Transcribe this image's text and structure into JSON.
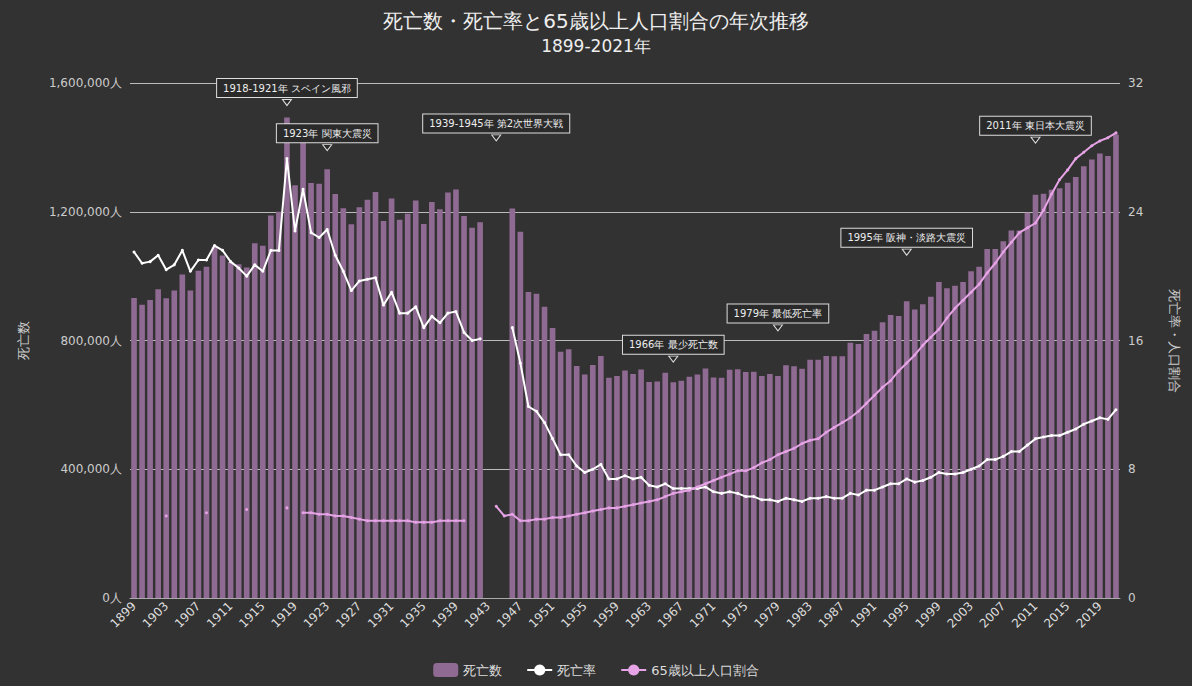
{
  "chart_data": {
    "type": "bar",
    "title": "死亡数・死亡率と65歳以上人口割合の年次推移",
    "subtitle": "1899-2021年",
    "ylabel": "死亡数",
    "y2label": "死亡率・人口割合",
    "categories": [
      "1899",
      null,
      null,
      null,
      "1903",
      null,
      null,
      null,
      "1907",
      null,
      null,
      null,
      "1911",
      null,
      null,
      null,
      "1915",
      null,
      null,
      null,
      "1919",
      null,
      null,
      null,
      "1923",
      null,
      null,
      null,
      "1927",
      null,
      null,
      null,
      "1931",
      null,
      null,
      null,
      "1935",
      null,
      null,
      null,
      "1939",
      null,
      null,
      null,
      "1943",
      null,
      null,
      null,
      "1947",
      null,
      null,
      null,
      "1951",
      null,
      null,
      null,
      "1955",
      null,
      null,
      null,
      "1959",
      null,
      null,
      null,
      "1963",
      null,
      null,
      null,
      "1967",
      null,
      null,
      null,
      "1971",
      null,
      null,
      null,
      "1975",
      null,
      null,
      null,
      "1979",
      null,
      null,
      null,
      "1983",
      null,
      null,
      null,
      "1987",
      null,
      null,
      null,
      "1991",
      null,
      null,
      null,
      "1995",
      null,
      null,
      null,
      "1999",
      null,
      null,
      null,
      "2003",
      null,
      null,
      null,
      "2007",
      null,
      null,
      null,
      "2011",
      null,
      null,
      null,
      "2015",
      null,
      null,
      null,
      "2019",
      null,
      null
    ],
    "series": [
      {
        "name": "死亡数",
        "type": "bar",
        "color": "#8f6a92",
        "values": [
          932000,
          911000,
          926000,
          959000,
          931000,
          955000,
          1005000,
          955000,
          1017000,
          1029000,
          1091000,
          1064000,
          1044000,
          1037000,
          1027000,
          1102000,
          1094000,
          1188000,
          1200000,
          1493000,
          1282000,
          1422000,
          1289000,
          1287000,
          1332000,
          1255000,
          1211000,
          1161000,
          1214000,
          1237000,
          1261000,
          1171000,
          1241000,
          1175000,
          1194000,
          1235000,
          1162000,
          1230000,
          1208000,
          1260000,
          1269000,
          1187000,
          1150000,
          1167000,
          null,
          null,
          null,
          1210000,
          1138000,
          951000,
          945000,
          905000,
          839000,
          765000,
          773000,
          721000,
          694000,
          724000,
          752000,
          684000,
          690000,
          707000,
          696000,
          710000,
          671000,
          673000,
          700000,
          670000,
          675000,
          687000,
          694000,
          713000,
          685000,
          684000,
          709000,
          711000,
          702000,
          703000,
          690000,
          696000,
          690000,
          723000,
          720000,
          712000,
          740000,
          740000,
          752000,
          751000,
          751000,
          793000,
          789000,
          820000,
          830000,
          857000,
          879000,
          876000,
          922000,
          896000,
          913000,
          936000,
          982000,
          962000,
          970000,
          982000,
          1015000,
          1029000,
          1084000,
          1084000,
          1108000,
          1142000,
          1142000,
          1197000,
          1253000,
          1256000,
          1268000,
          1273000,
          1290000,
          1308000,
          1341000,
          1362000,
          1381000,
          1373000,
          1440000
        ]
      },
      {
        "name": "死亡率",
        "type": "line",
        "axis": "y2",
        "color": "#ffffff",
        "marker": "circle",
        "values": [
          21.5,
          20.8,
          20.9,
          21.3,
          20.4,
          20.7,
          21.6,
          20.3,
          21.0,
          21.0,
          21.9,
          21.6,
          20.9,
          20.5,
          20.0,
          20.7,
          20.3,
          21.6,
          21.6,
          27.3,
          22.8,
          25.4,
          22.7,
          22.4,
          22.9,
          21.3,
          20.3,
          19.1,
          19.7,
          19.8,
          19.9,
          18.2,
          19.0,
          17.7,
          17.7,
          18.1,
          16.8,
          17.5,
          17.1,
          17.7,
          17.8,
          16.5,
          16.0,
          16.1,
          null,
          null,
          null,
          16.8,
          14.6,
          11.9,
          11.6,
          10.9,
          9.9,
          8.9,
          8.9,
          8.2,
          7.8,
          8.0,
          8.3,
          7.4,
          7.4,
          7.6,
          7.4,
          7.5,
          7.0,
          6.9,
          7.1,
          6.8,
          6.8,
          6.8,
          6.8,
          6.9,
          6.6,
          6.5,
          6.6,
          6.5,
          6.3,
          6.3,
          6.1,
          6.1,
          6.0,
          6.2,
          6.1,
          6.0,
          6.2,
          6.2,
          6.3,
          6.2,
          6.2,
          6.5,
          6.4,
          6.7,
          6.7,
          6.9,
          7.1,
          7.1,
          7.4,
          7.2,
          7.3,
          7.5,
          7.8,
          7.7,
          7.7,
          7.8,
          8.0,
          8.2,
          8.6,
          8.6,
          8.8,
          9.1,
          9.1,
          9.5,
          9.9,
          10.0,
          10.1,
          10.1,
          10.3,
          10.5,
          10.8,
          11.0,
          11.2,
          11.1,
          11.7
        ]
      },
      {
        "name": "65歳以上人口割合",
        "type": "line",
        "axis": "y2",
        "color": "#e6a3e6",
        "marker": "circle",
        "values": [
          null,
          null,
          null,
          null,
          5.1,
          null,
          null,
          null,
          null,
          5.3,
          null,
          null,
          null,
          null,
          5.5,
          null,
          null,
          null,
          null,
          5.6,
          null,
          5.3,
          5.3,
          5.2,
          5.2,
          5.1,
          5.1,
          5.0,
          4.9,
          4.8,
          4.8,
          4.8,
          4.8,
          4.8,
          4.8,
          4.7,
          4.7,
          4.7,
          4.8,
          4.8,
          4.8,
          4.8,
          null,
          null,
          null,
          5.7,
          5.1,
          5.2,
          4.8,
          4.8,
          4.9,
          4.9,
          5.0,
          5.0,
          5.1,
          5.2,
          5.3,
          5.4,
          5.5,
          5.6,
          5.6,
          5.7,
          5.8,
          5.9,
          6.0,
          6.1,
          6.3,
          6.5,
          6.6,
          6.7,
          6.9,
          7.1,
          7.3,
          7.5,
          7.7,
          7.9,
          7.9,
          8.1,
          8.4,
          8.6,
          8.9,
          9.1,
          9.3,
          9.6,
          9.8,
          9.9,
          10.3,
          10.6,
          10.9,
          11.2,
          11.6,
          12.1,
          12.6,
          13.1,
          13.5,
          14.1,
          14.6,
          15.1,
          15.7,
          16.2,
          16.7,
          17.4,
          18.0,
          18.5,
          19.0,
          19.5,
          20.2,
          20.8,
          21.5,
          22.1,
          22.7,
          23.0,
          23.3,
          24.1,
          25.1,
          26.0,
          26.6,
          27.3,
          27.7,
          28.1,
          28.4,
          28.6,
          28.9
        ]
      }
    ],
    "ylim": [
      0,
      1600000
    ],
    "yticks": [
      {
        "value": 0,
        "label": "0人"
      },
      {
        "value": 400000,
        "label": "400,000人"
      },
      {
        "value": 800000,
        "label": "800,000人"
      },
      {
        "value": 1200000,
        "label": "1,200,000人"
      },
      {
        "value": 1600000,
        "label": "1,600,000人"
      }
    ],
    "y2lim": [
      0,
      32
    ],
    "y2ticks": [
      0,
      8,
      16,
      24,
      32
    ],
    "grid": true,
    "legend": "bottom",
    "annotations": [
      {
        "text": "1918-1921年 スペイン風邪",
        "x": 19,
        "y": 1530000
      },
      {
        "text": "1923年 関東大震災",
        "x": 24,
        "y": 1390000
      },
      {
        "text": "1939-1945年 第2次世界大戦",
        "x": 45,
        "y": 1420000
      },
      {
        "text": "1966年 最少死亡数",
        "x": 67,
        "y": 733000
      },
      {
        "text": "1979年 最低死亡率",
        "x": 80,
        "y": 830000
      },
      {
        "text": "1995年 阪神・淡路大震災",
        "x": 96,
        "y": 1065000
      },
      {
        "text": "2011年 東日本大震災",
        "x": 112,
        "y": 1413000
      }
    ]
  }
}
